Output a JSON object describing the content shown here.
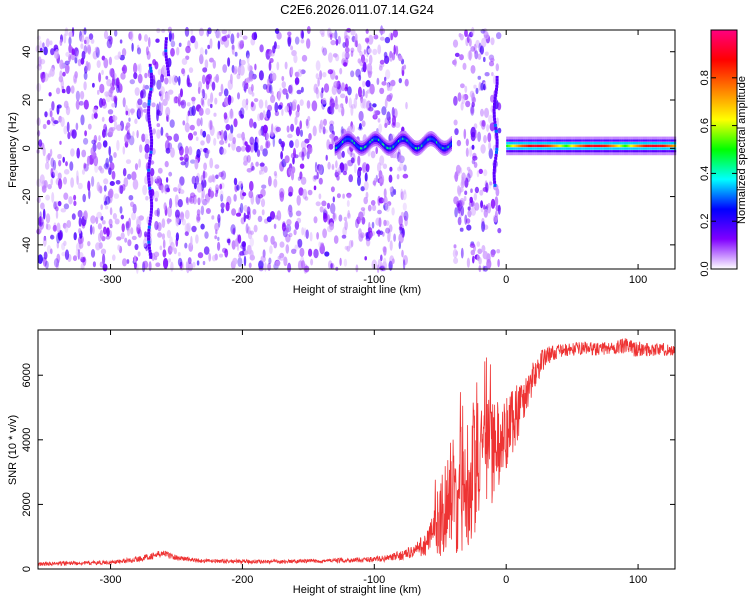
{
  "chart_data": [
    {
      "type": "heatmap",
      "title": "C2E6.2026.011.07.14.G24",
      "xlabel": "Height of straight line (km)",
      "ylabel": "Frequency (Hz)",
      "xlim": [
        -355,
        128
      ],
      "ylim": [
        -50,
        49
      ],
      "x_ticks": [
        -300,
        -200,
        -100,
        0,
        100
      ],
      "x_tick_labels": [
        "-300",
        "-200",
        "-100",
        "0",
        "100"
      ],
      "y_ticks": [
        -40,
        -20,
        0,
        20,
        40
      ],
      "y_tick_labels": [
        "-40",
        "-20",
        "0",
        "20",
        "40"
      ],
      "colorbar": {
        "label": "Normalized spectral amplitude",
        "range": [
          0,
          1
        ],
        "ticks": [
          0.0,
          0.2,
          0.4,
          0.6,
          0.8
        ],
        "tick_labels": [
          "0.0",
          "0.2",
          "0.4",
          "0.6",
          "0.8"
        ],
        "colormap": [
          "#ffffff",
          "#8000ff",
          "#0000ff",
          "#00ffff",
          "#00ff00",
          "#ffff00",
          "#ff8000",
          "#ff0000",
          "#ff0080"
        ]
      },
      "features": [
        {
          "description": "scattered low-amplitude noise",
          "x_range": [
            -355,
            -75
          ],
          "freq_range": [
            -50,
            49
          ]
        },
        {
          "description": "gap with no data",
          "x_range": [
            -75,
            -40
          ]
        },
        {
          "description": "scattered noise band",
          "x_range": [
            -40,
            -5
          ],
          "freq_range": [
            -50,
            49
          ]
        },
        {
          "description": "signal trace",
          "x_range": [
            -130,
            -42
          ],
          "freq_center": 2
        },
        {
          "description": "strong signal trace",
          "x_range": [
            0,
            128
          ],
          "freq_center": 1
        },
        {
          "description": "streak",
          "x": -270,
          "freq_range": [
            -45,
            35
          ]
        },
        {
          "description": "streak",
          "x": -257,
          "freq_range": [
            30,
            46
          ]
        },
        {
          "description": "streak",
          "x": -8,
          "freq_range": [
            -15,
            30
          ]
        }
      ]
    },
    {
      "type": "line",
      "title": "",
      "xlabel": "Height of straight line (km)",
      "ylabel": "SNR (10 * v/v)",
      "xlim": [
        -355,
        128
      ],
      "ylim": [
        0,
        7400
      ],
      "x_ticks": [
        -300,
        -200,
        -100,
        0,
        100
      ],
      "x_tick_labels": [
        "-300",
        "-200",
        "-100",
        "0",
        "100"
      ],
      "y_ticks": [
        0,
        2000,
        4000,
        6000
      ],
      "y_tick_labels": [
        "0",
        "2000",
        "4000",
        "6000"
      ],
      "line_color": "#ee3333",
      "x": [
        -355,
        -330,
        -300,
        -280,
        -260,
        -250,
        -230,
        -200,
        -170,
        -140,
        -110,
        -90,
        -80,
        -70,
        -60,
        -55,
        -50,
        -45,
        -40,
        -35,
        -30,
        -25,
        -20,
        -15,
        -10,
        -5,
        0,
        5,
        10,
        15,
        20,
        25,
        30,
        40,
        50,
        60,
        70,
        80,
        90,
        100,
        110,
        120,
        128
      ],
      "y": [
        150,
        180,
        200,
        300,
        480,
        350,
        250,
        230,
        230,
        250,
        280,
        330,
        420,
        550,
        800,
        1200,
        1600,
        2100,
        2400,
        2300,
        2800,
        3000,
        3200,
        3500,
        3600,
        3800,
        4200,
        4700,
        5000,
        5400,
        5900,
        6300,
        6600,
        6750,
        6800,
        6850,
        6800,
        6850,
        6900,
        6800,
        6800,
        6800,
        6750
      ],
      "noise_amplitude": [
        60,
        60,
        60,
        80,
        120,
        80,
        60,
        60,
        60,
        60,
        80,
        100,
        150,
        200,
        400,
        800,
        1200,
        1600,
        1800,
        2000,
        2200,
        2000,
        2000,
        1800,
        1600,
        1400,
        1200,
        1100,
        900,
        700,
        500,
        400,
        300,
        200,
        200,
        200,
        200,
        200,
        250,
        250,
        200,
        200,
        200
      ]
    }
  ]
}
